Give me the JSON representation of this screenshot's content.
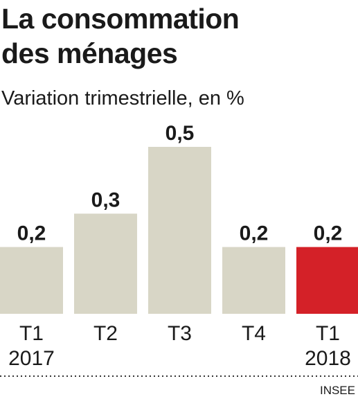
{
  "chart_data": {
    "type": "bar",
    "title": "La consommation\ndes ménages",
    "subtitle": "Variation trimestrielle, en %",
    "categories": [
      "T1\n2017",
      "T2",
      "T3",
      "T4",
      "T1\n2018"
    ],
    "values": [
      0.2,
      0.3,
      0.5,
      0.2,
      0.2
    ],
    "value_labels": [
      "0,2",
      "0,3",
      "0,5",
      "0,2",
      "0,2"
    ],
    "highlight_index": 4,
    "ylim": [
      0,
      0.5
    ],
    "grid": false,
    "xlabel": "",
    "ylabel": "",
    "source": "INSEE"
  },
  "colors": {
    "bar": "#d8d6c6",
    "highlight": "#d42128",
    "text": "#1a1a1a",
    "dotted_line": "#333333"
  }
}
